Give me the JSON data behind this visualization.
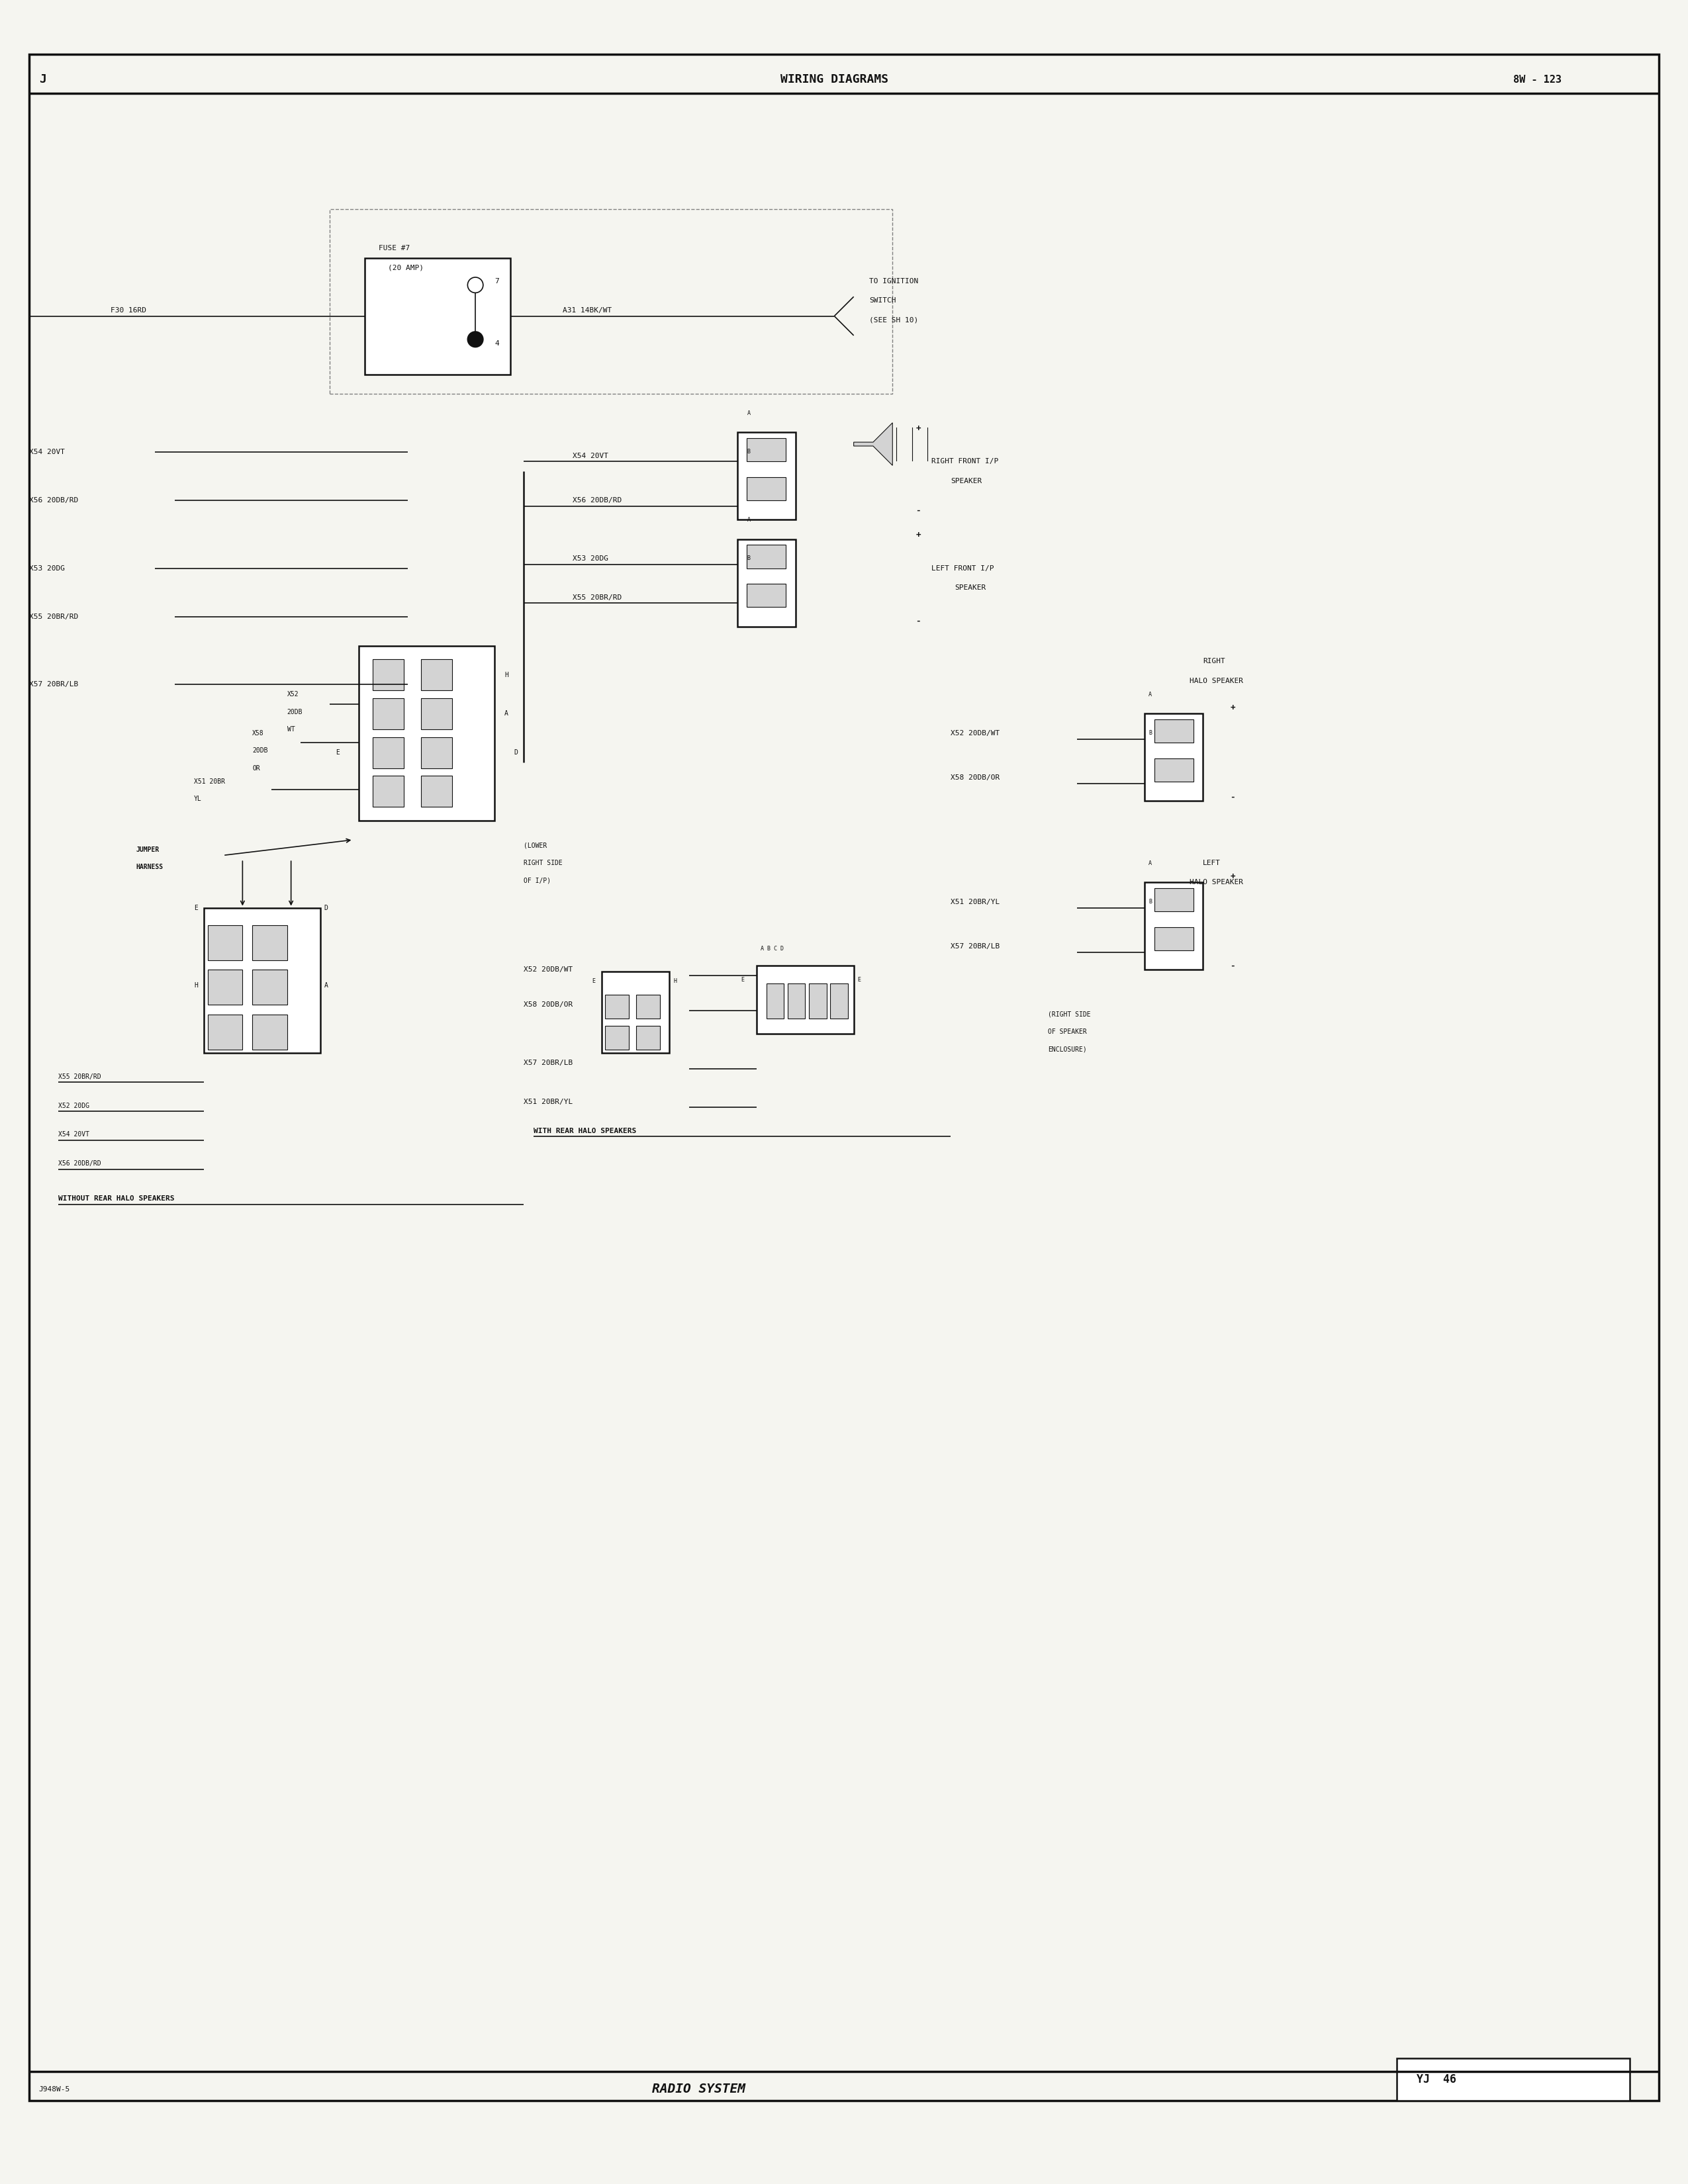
{
  "title": "WIRING DIAGRAMS",
  "page_ref": "8W - 123",
  "page_label": "J",
  "diagram_title": "RADIO SYSTEM",
  "diagram_ref": "YJ  46",
  "diagram_code": "J948W-5",
  "bg_color": "#f5f5f0",
  "line_color": "#111111",
  "text_color": "#111111",
  "border_color": "#111111"
}
